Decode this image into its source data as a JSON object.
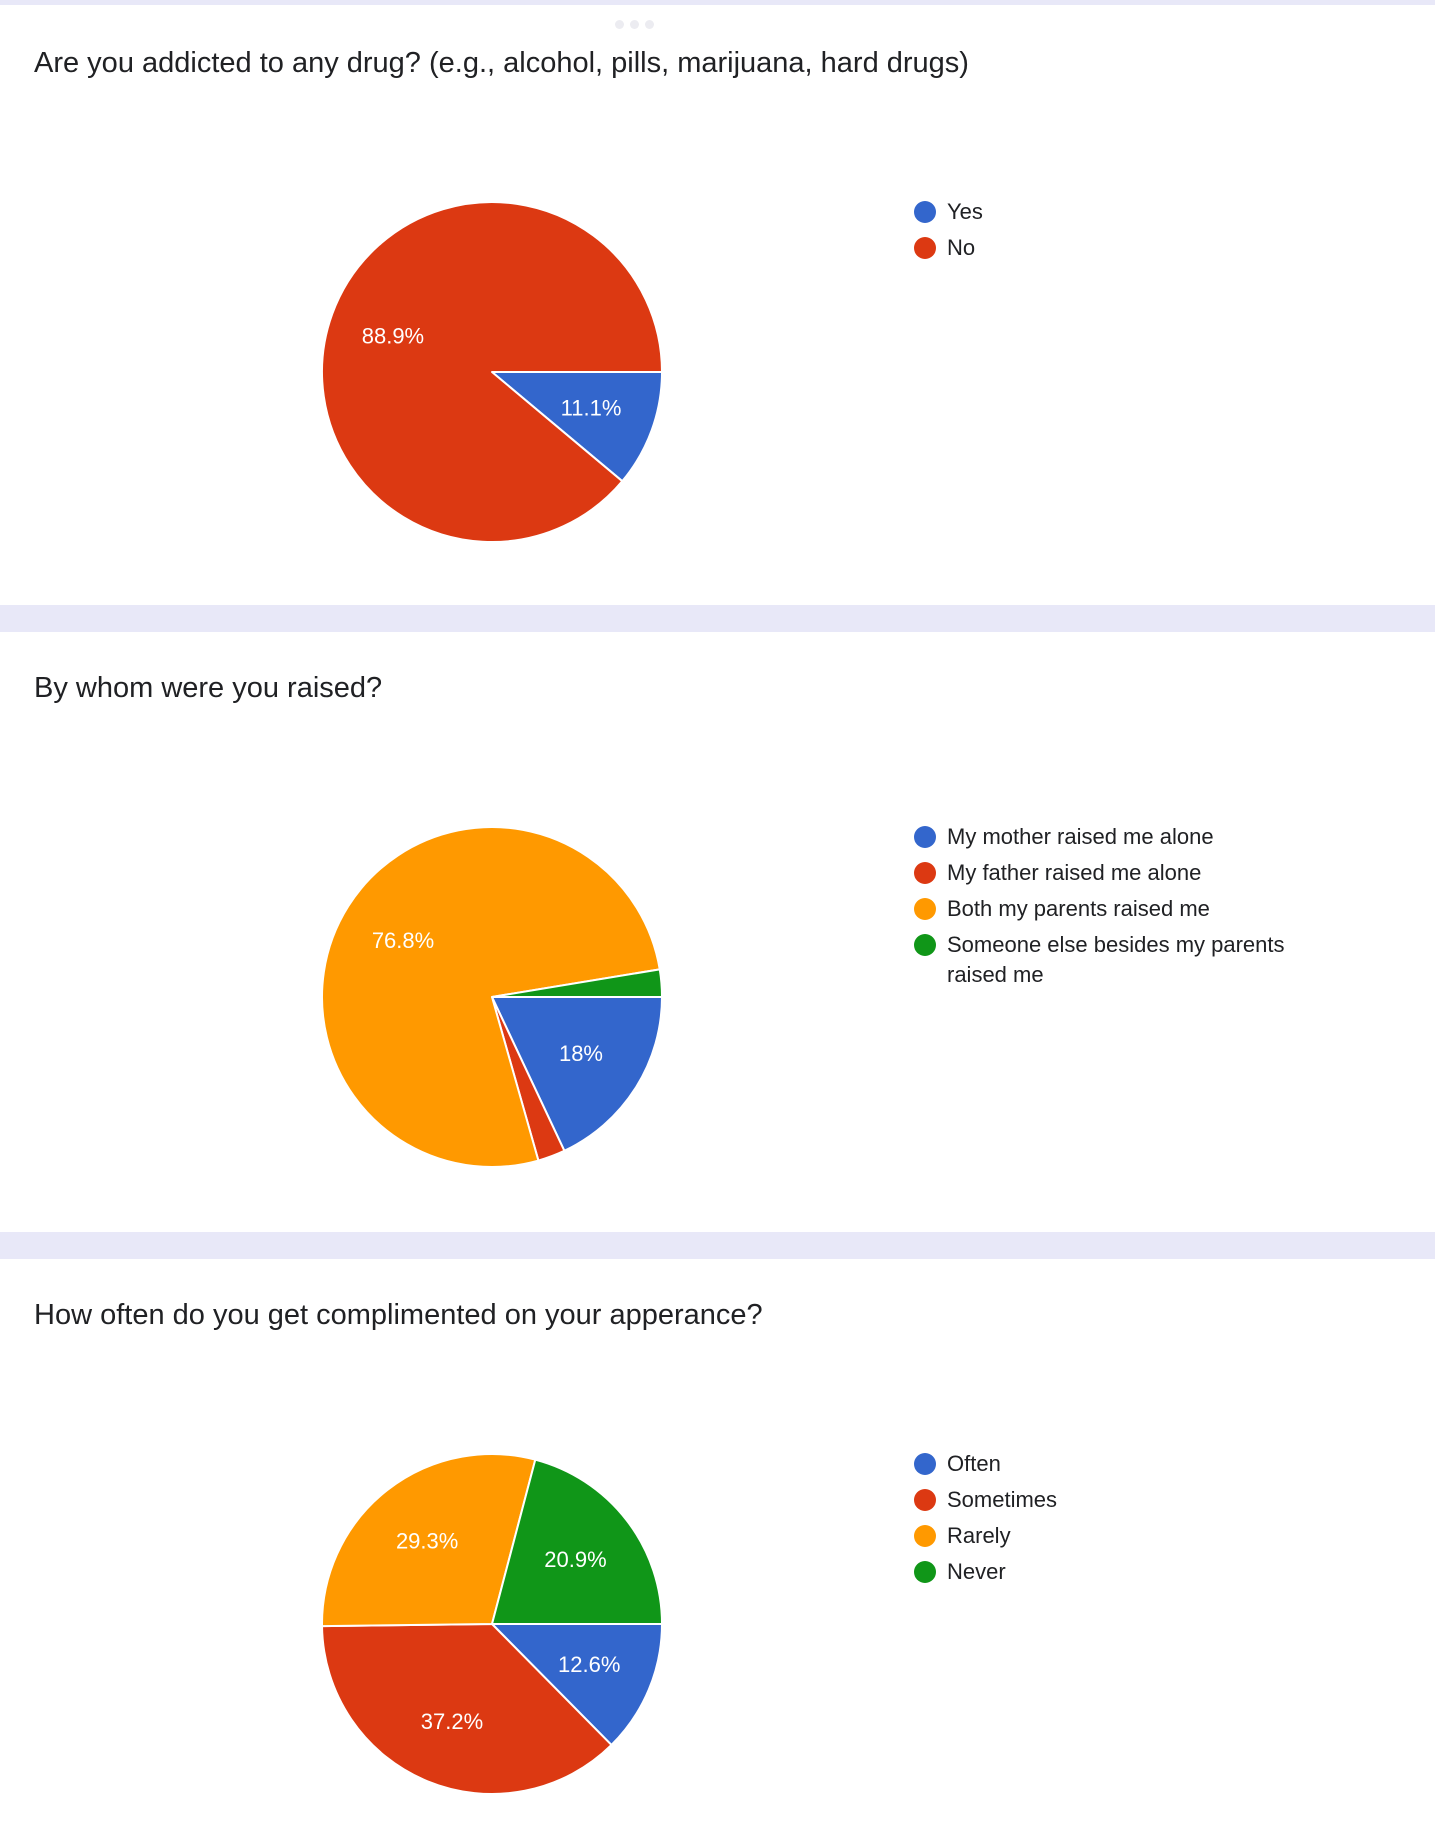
{
  "colors": {
    "blue": "#3366cc",
    "red": "#dc3912",
    "orange": "#ff9900",
    "green": "#109618",
    "page_background": "#e8e8f8",
    "card_background": "#ffffff"
  },
  "chart_data": [
    {
      "type": "pie",
      "title": "Are you addicted to any drug? (e.g., alcohol, pills, marijuana, hard drugs)",
      "legend_position": "right",
      "categories": [
        "Yes",
        "No"
      ],
      "values": [
        11.1,
        88.9
      ],
      "data_labels": [
        "11.1%",
        "88.9%"
      ],
      "colors": [
        "#3366cc",
        "#dc3912"
      ]
    },
    {
      "type": "pie",
      "title": "By whom were you raised?",
      "legend_position": "right",
      "categories": [
        "My mother raised me alone",
        "My father raised me alone",
        "Both my parents raised me",
        "Someone else besides my parents raised me"
      ],
      "values": [
        18,
        2.6,
        76.8,
        2.6
      ],
      "data_labels": [
        "18%",
        "",
        "76.8%",
        ""
      ],
      "colors": [
        "#3366cc",
        "#dc3912",
        "#ff9900",
        "#109618"
      ]
    },
    {
      "type": "pie",
      "title": "How often do you get complimented on your apperance?",
      "legend_position": "right",
      "categories": [
        "Often",
        "Sometimes",
        "Rarely",
        "Never"
      ],
      "values": [
        12.6,
        37.2,
        29.3,
        20.9
      ],
      "data_labels": [
        "12.6%",
        "37.2%",
        "29.3%",
        "20.9%"
      ],
      "colors": [
        "#3366cc",
        "#dc3912",
        "#ff9900",
        "#109618"
      ]
    }
  ]
}
